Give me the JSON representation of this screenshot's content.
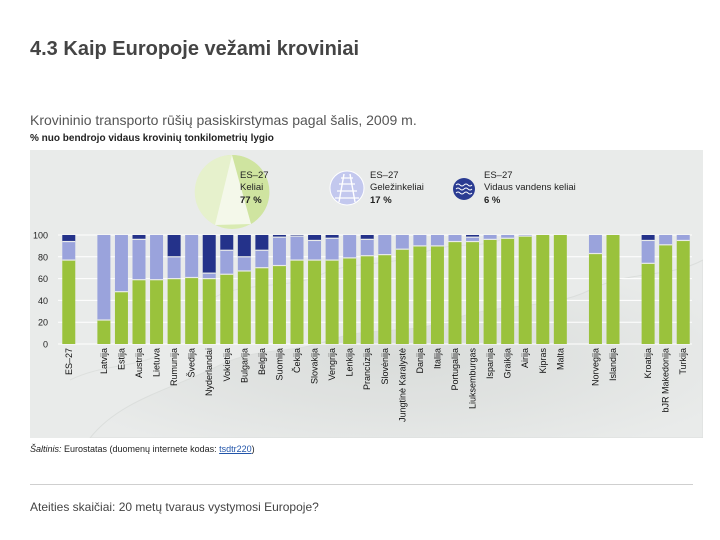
{
  "slide": {
    "title_number": "4.3",
    "title_text": "Kaip Europoje vežami kroviniai"
  },
  "source": {
    "prefix": "Šaltinis:",
    "text": " Eurostatas (duomenų internete kodas: ",
    "link": "tsdtr220",
    "suffix": ")"
  },
  "footer": {
    "text": "Ateities skaičiai: 20 metų tvaraus vystymosi Europoje?"
  },
  "colors": {
    "road": "#9ac23c",
    "rail": "#9aa3dc",
    "water": "#24328a",
    "panel": "#e9ebea",
    "gap": "#e9ebea"
  },
  "legend": [
    {
      "name": "ES–27",
      "mode": "Keliai",
      "share": "77 %",
      "icon": "pie-chart-icon"
    },
    {
      "name": "ES–27",
      "mode": "Geležinkeliai",
      "share": "17 %",
      "icon": "railway-track-icon"
    },
    {
      "name": "ES–27",
      "mode": "Vidaus vandens keliai",
      "share": "6 %",
      "icon": "water-waves-icon"
    }
  ],
  "chart_data": {
    "type": "bar",
    "stacked": true,
    "title": "Krovininio transporto rūšių pasiskirstymas pagal šalis, 2009 m.",
    "ylabel": "% nuo bendrojo vidaus krovinių tonkilometrių lygio",
    "ylim": [
      0,
      100
    ],
    "yticks": [
      0,
      20,
      40,
      60,
      80,
      100
    ],
    "categories": [
      "ES–27",
      "",
      "Latvija",
      "Estija",
      "Austrija",
      "Lietuva",
      "Rumunija",
      "Švedija",
      "Nyderlandai",
      "Vokietija",
      "Bulgarija",
      "Belgija",
      "Suomija",
      "Čekija",
      "Slovakija",
      "Vengrija",
      "Lenkija",
      "Prancūzija",
      "Slovėnija",
      "Jungtinė Karalystė",
      "Danija",
      "Italija",
      "Portugalija",
      "Liuksemburgas",
      "Ispanija",
      "Graikija",
      "Airija",
      "Kipras",
      "Malta",
      "",
      "Norvegija",
      "Islandija",
      "",
      "Kroatija",
      "buvusioji Jugoslavijos Respublika Makedonija",
      "Turkija"
    ],
    "category_labels": [
      "ES–27",
      "",
      "Latvija",
      "Estija",
      "Austrija",
      "Lietuva",
      "Rumunija",
      "Švedija",
      "Nyderlandai",
      "Vokietija",
      "Bulgarija",
      "Belgija",
      "Suomija",
      "Čekija",
      "Slovakija",
      "Vengrija",
      "Lenkija",
      "Prancūzija",
      "Slovėnija",
      "Jungtinė Karalystė",
      "Danija",
      "Italija",
      "Portugalija",
      "Liuksemburgas",
      "Ispanija",
      "Graikija",
      "Airija",
      "Kipras",
      "Malta",
      "",
      "Norvegija",
      "Islandija",
      "",
      "Kroatija",
      "bJR Makedonija",
      "Turkija"
    ],
    "series": [
      {
        "name": "Keliai",
        "values": [
          77,
          null,
          22,
          48,
          59,
          59,
          60,
          61,
          60,
          64,
          67,
          70,
          72,
          77,
          77,
          77,
          79,
          81,
          82,
          87,
          90,
          90,
          94,
          94,
          96,
          97,
          99,
          100,
          100,
          null,
          83,
          100,
          null,
          74,
          91,
          95
        ]
      },
      {
        "name": "Geležinkeliai",
        "values": [
          17,
          null,
          78,
          52,
          37,
          41,
          20,
          39,
          5,
          22,
          13,
          16,
          26,
          22,
          18,
          20,
          21,
          15,
          18,
          13,
          10,
          10,
          6,
          4,
          4,
          3,
          1,
          0,
          0,
          null,
          17,
          0,
          null,
          21,
          9,
          5
        ]
      },
      {
        "name": "Vidaus vandens keliai",
        "values": [
          6,
          null,
          0,
          0,
          4,
          0,
          20,
          0,
          35,
          14,
          20,
          14,
          2,
          1,
          5,
          3,
          0,
          4,
          0,
          0,
          0,
          0,
          0,
          2,
          0,
          0,
          0,
          0,
          0,
          null,
          0,
          0,
          null,
          5,
          0,
          0
        ]
      }
    ]
  }
}
